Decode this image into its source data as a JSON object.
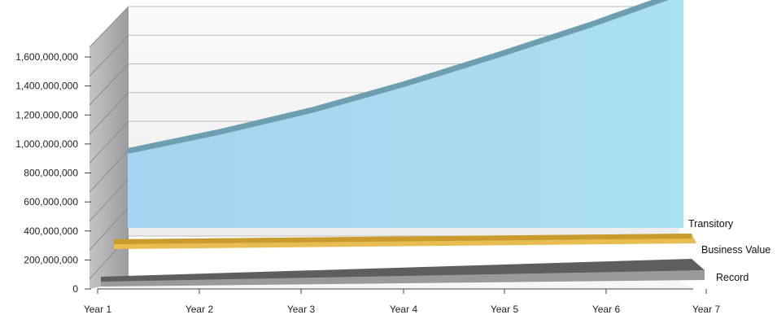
{
  "chart_data": {
    "type": "area",
    "style": "3d-depth",
    "categories": [
      "Year 1",
      "Year 2",
      "Year 3",
      "Year 4",
      "Year 5",
      "Year 6",
      "Year 7"
    ],
    "y_ticks": [
      "0",
      "200,000,000",
      "400,000,000",
      "600,000,000",
      "800,000,000",
      "1,000,000,000",
      "1,200,000,000",
      "1,400,000,000",
      "1,600,000,000"
    ],
    "ylim": [
      0,
      1600000000
    ],
    "grid": true,
    "series": [
      {
        "name": "Transitory",
        "values": [
          560000000,
          700000000,
          860000000,
          1050000000,
          1260000000,
          1480000000,
          1720000000
        ],
        "color": "#a8dcf0",
        "edge_color": "#6e9fb0"
      },
      {
        "name": "Business Value",
        "values": [
          30000000,
          33000000,
          36000000,
          39000000,
          42000000,
          45000000,
          48000000
        ],
        "color": "#e7bd52",
        "edge_color": "#c99a2c"
      },
      {
        "name": "Record",
        "values": [
          20000000,
          40000000,
          60000000,
          80000000,
          100000000,
          120000000,
          140000000
        ],
        "color": "#9a9a9a",
        "edge_color": "#5e5e5e"
      }
    ]
  }
}
